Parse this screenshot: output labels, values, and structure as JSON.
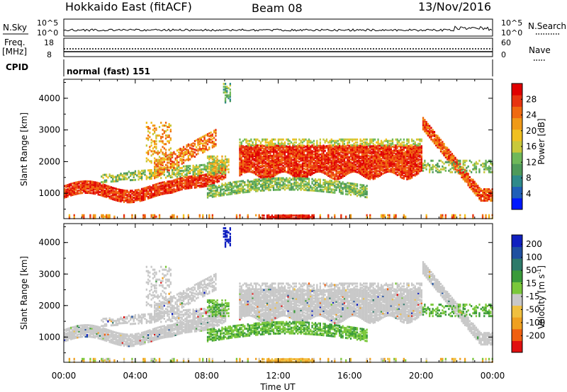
{
  "header": {
    "radar": "Hokkaido East (fitACF)",
    "beam": "Beam 08",
    "date": "13/Nov/2016"
  },
  "strips": {
    "nsky_label": "N.Sky",
    "nsearch_label": "N.Search",
    "nsky_ticks": [
      "10^5",
      "10^0"
    ],
    "nsearch_ticks": [
      "10^5",
      "10^0"
    ],
    "freq_label": "Freq.",
    "freq_unit": "[MHz]",
    "freq_ticks": [
      "18",
      "8"
    ],
    "nave_label": "Nave",
    "nave_ticks": [
      "60",
      "0"
    ],
    "cpid_label": "CPID",
    "cpid_value": "normal (fast) 151"
  },
  "chart_data": [
    {
      "type": "heatmap",
      "panel": "power",
      "ylabel": "Slant Range [km]",
      "yticks": [
        "1000",
        "2000",
        "3000",
        "4000"
      ],
      "ylim": [
        200,
        4600
      ],
      "xlim": [
        0,
        24
      ],
      "colorbar": {
        "label": "Power [dB]",
        "ticks": [
          "4",
          "8",
          "12",
          "16",
          "20",
          "24",
          "28"
        ],
        "range": [
          0,
          32
        ],
        "colors": [
          "#0018ff",
          "#1f5fb8",
          "#2e8a8a",
          "#4e9a5a",
          "#6fb85a",
          "#c8c83a",
          "#f0c020",
          "#f09a18",
          "#f06a10",
          "#e83410",
          "#e00000"
        ]
      },
      "bands": [
        {
          "desc": "F-region backscatter",
          "x": [
            0,
            9
          ],
          "range_km": [
            850,
            1300
          ],
          "power_db": 24
        },
        {
          "desc": "rising band",
          "x": [
            5,
            8.5
          ],
          "range_km": [
            1500,
            2700
          ],
          "power_db": 20
        },
        {
          "desc": "upper band",
          "x": [
            10,
            20
          ],
          "range_km": [
            1600,
            2500
          ],
          "power_db": 26
        },
        {
          "desc": "lower band",
          "x": [
            8,
            17
          ],
          "range_km": [
            900,
            1400
          ],
          "power_db": 14
        },
        {
          "desc": "post-20UT descending band",
          "x": [
            20,
            24
          ],
          "range_km": [
            800,
            3500
          ],
          "power_db": 22
        },
        {
          "desc": "near-range echoes",
          "x": [
            0,
            24
          ],
          "range_km": [
            200,
            400
          ],
          "power_db": 18
        }
      ]
    },
    {
      "type": "heatmap",
      "panel": "velocity",
      "ylabel": "Slant Range [km]",
      "yticks": [
        "1000",
        "2000",
        "3000",
        "4000"
      ],
      "ylim": [
        200,
        4600
      ],
      "xlim": [
        0,
        24
      ],
      "xticks": [
        "00:00",
        "04:00",
        "08:00",
        "12:00",
        "16:00",
        "20:00",
        "00:00"
      ],
      "xlabel": "Time UT",
      "colorbar": {
        "label": "Velocity [m s",
        "label_sup": "-1",
        "label_end": "]",
        "ticks": [
          "200",
          "100",
          "50",
          "15",
          "-15",
          "-50",
          "-100",
          "-200"
        ],
        "colors": [
          "#1020c0",
          "#2050a0",
          "#2e7a6a",
          "#3a9a3a",
          "#7ac83a",
          "#c8c8c8",
          "#f0c040",
          "#f0a020",
          "#f06010",
          "#e01010"
        ]
      }
    }
  ]
}
